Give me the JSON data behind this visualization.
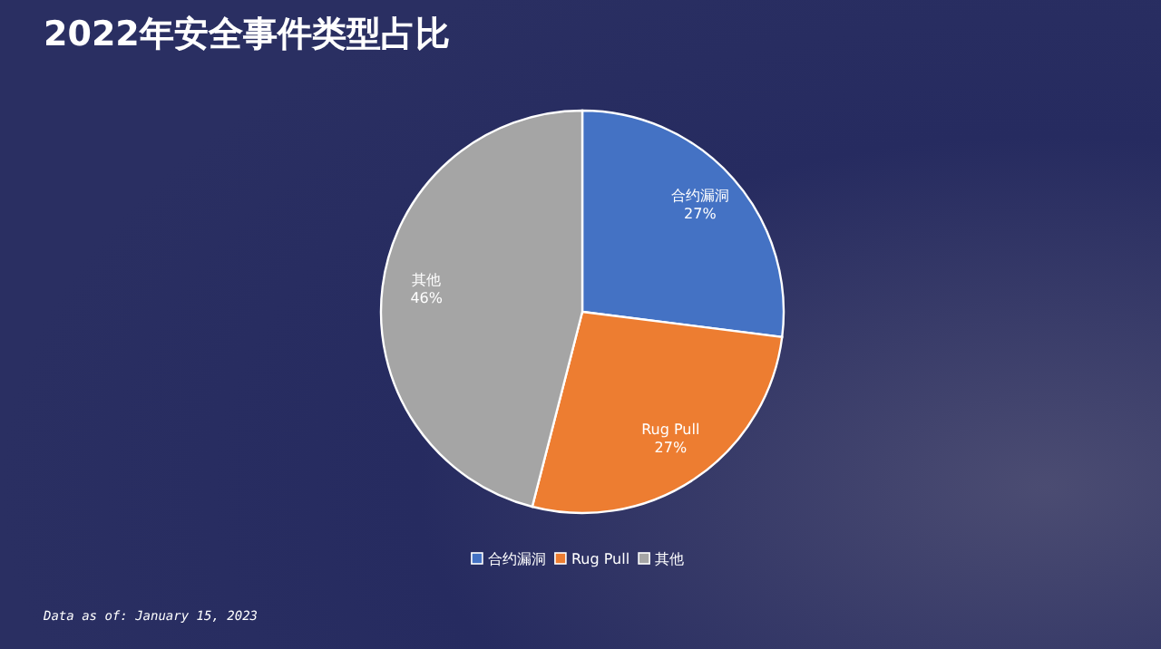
{
  "chart_data": {
    "type": "pie",
    "title": "2022年安全事件类型占比",
    "categories": [
      "合约漏洞",
      "Rug Pull",
      "其他"
    ],
    "values": [
      27,
      27,
      46
    ],
    "colors": [
      "#4472c4",
      "#ed7d31",
      "#a5a5a5"
    ],
    "value_labels": [
      "27%",
      "27%",
      "46%"
    ],
    "legend": "bottom",
    "annotations": [
      "Data as of: January 15, 2023"
    ]
  }
}
